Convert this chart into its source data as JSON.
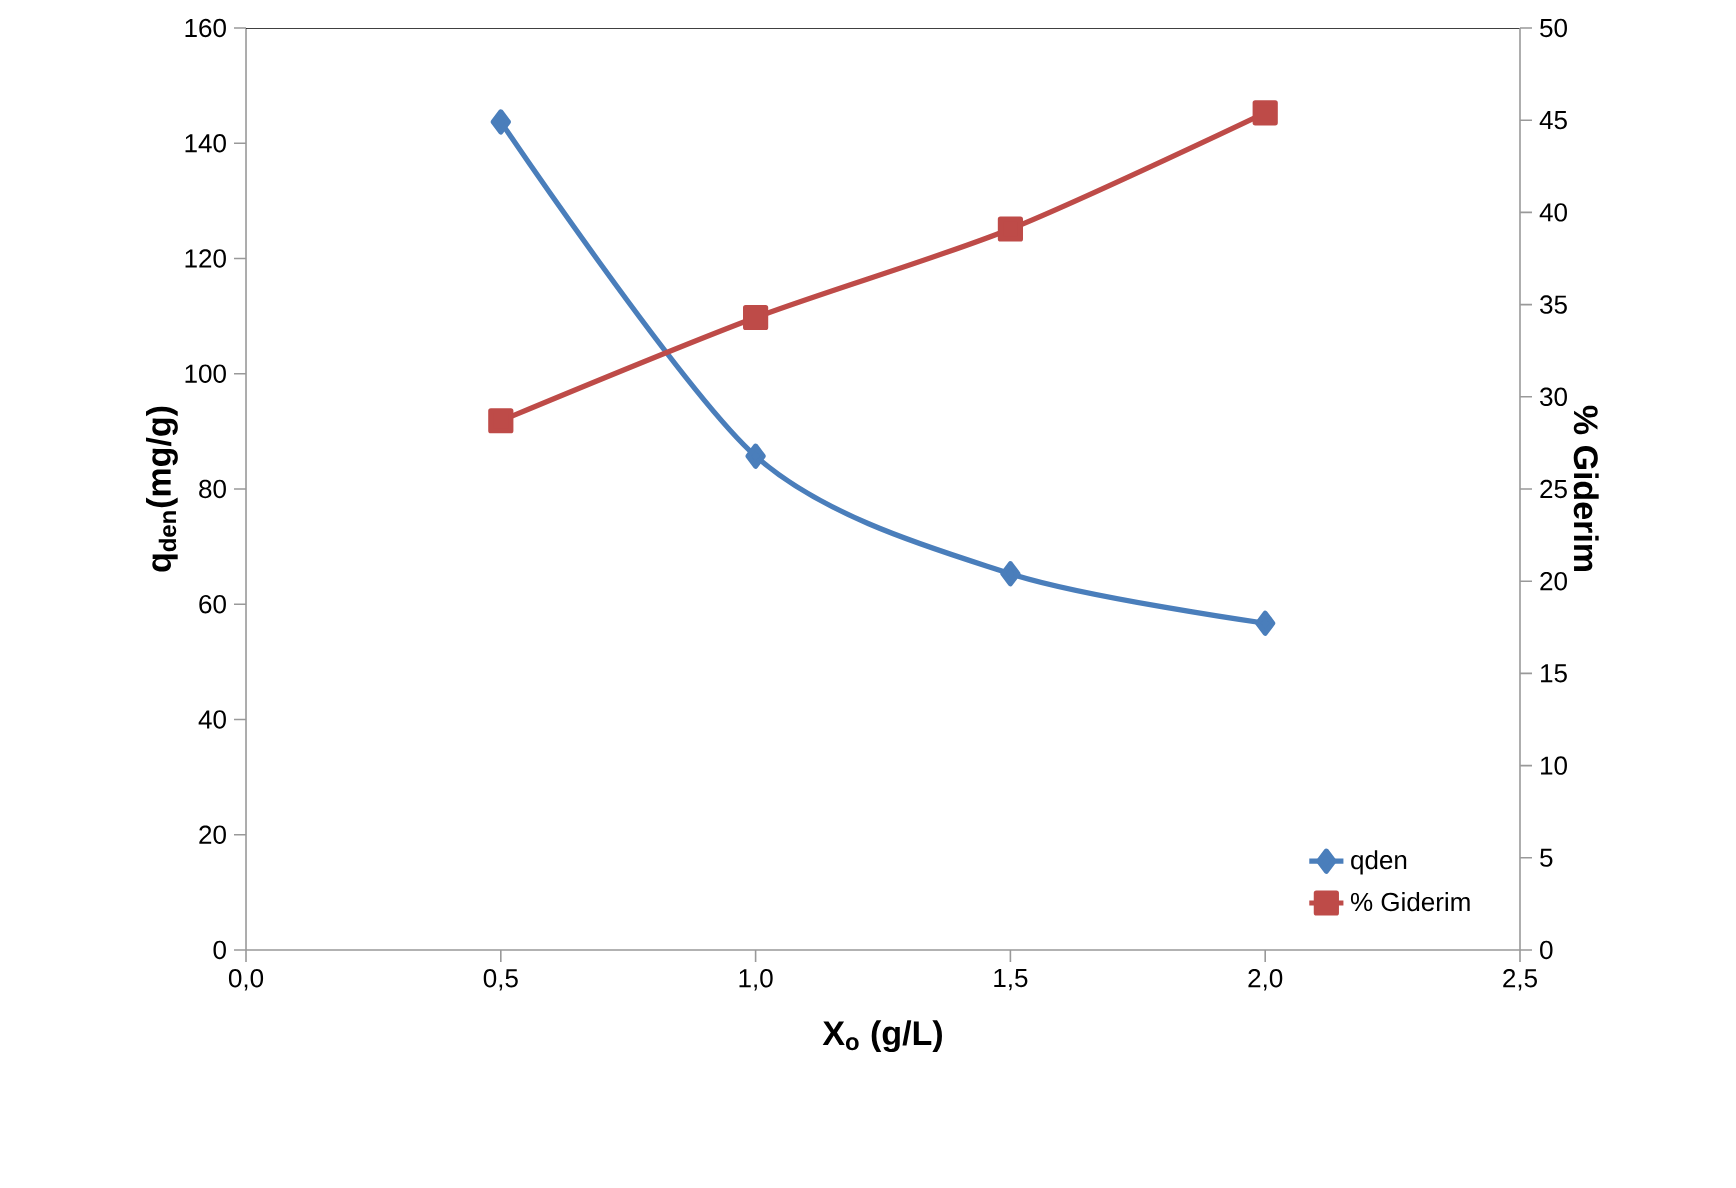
{
  "chart_data": {
    "type": "line",
    "xlabel": "X$_{o}$ (g/L)",
    "ylabel": "q$_{den}$(mg/g)",
    "y2label": "% Giderim",
    "x": [
      0.5,
      1.0,
      1.5,
      2.0
    ],
    "series": [
      {
        "name": "qden",
        "color": "#4a7ebb",
        "marker": "diamond",
        "values": [
          143.7,
          85.7,
          65.3,
          56.7
        ]
      },
      {
        "name": "% Giderim",
        "color": "#be4b48",
        "marker": "square",
        "axis": "y2",
        "values": [
          28.7,
          34.3,
          39.1,
          45.4
        ]
      }
    ],
    "xlim": [
      0,
      2.5
    ],
    "xticks": [
      {
        "value": 0,
        "label": "0,0"
      },
      {
        "value": 0.5,
        "label": "0,5"
      },
      {
        "value": 1.0,
        "label": "1,0"
      },
      {
        "value": 1.5,
        "label": "1,5"
      },
      {
        "value": 2.0,
        "label": "2,0"
      },
      {
        "value": 2.5,
        "label": "2,5"
      }
    ],
    "ylim": [
      0,
      160
    ],
    "yticks": [
      0,
      20,
      40,
      60,
      80,
      100,
      120,
      140,
      160
    ],
    "y2lim": [
      0,
      50
    ],
    "y2ticks": [
      0,
      5,
      10,
      15,
      20,
      25,
      30,
      35,
      40,
      45,
      50
    ],
    "legend": "bottom right",
    "grid": false,
    "line_style": "solid"
  }
}
